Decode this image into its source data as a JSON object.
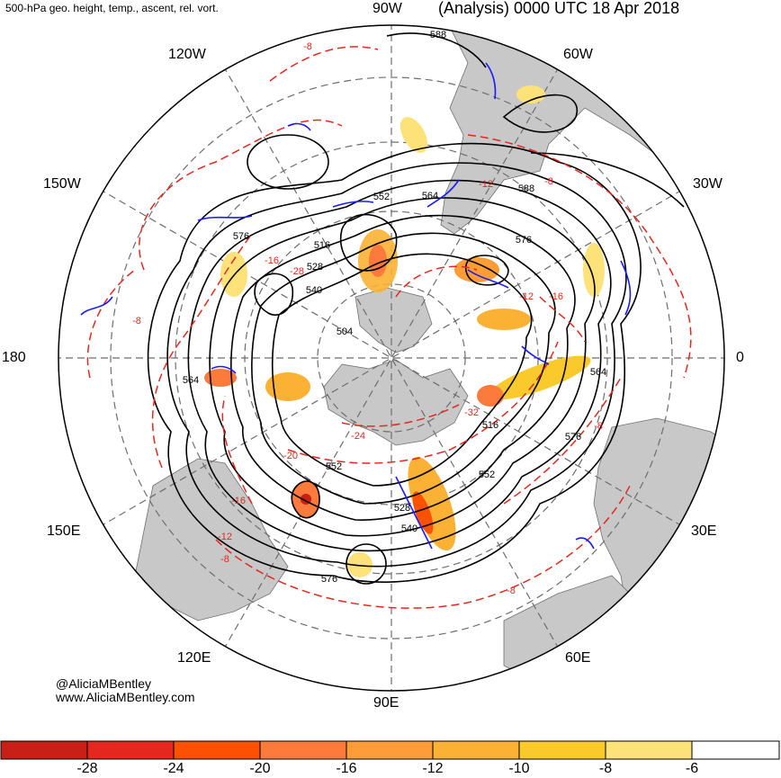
{
  "header": {
    "product": "500-hPa geo. height, temp., ascent, rel. vort.",
    "analysis": "(Analysis) 0000 UTC 18 Apr 2018"
  },
  "longitude_labels": {
    "w90": "90W",
    "w60": "60W",
    "w30": "30W",
    "lon0": "0",
    "e30": "30E",
    "e60": "60E",
    "e90": "90E",
    "e120": "120E",
    "e150": "150E",
    "lon180": "180",
    "w150": "150W",
    "w120": "120W"
  },
  "height_contour_labels": [
    "588",
    "588",
    "576",
    "576",
    "576",
    "576",
    "564",
    "564",
    "564",
    "552",
    "552",
    "552",
    "540",
    "528",
    "528",
    "516",
    "516",
    "504",
    "540"
  ],
  "temperature_contour_labels": [
    "-8",
    "-8",
    "-8",
    "-8",
    "-8",
    "-8",
    "-12",
    "-12",
    "-12",
    "-16",
    "-16",
    "-16",
    "-20",
    "-24",
    "-28",
    "-32"
  ],
  "credit": {
    "handle": "@AliciaMBentley",
    "website": "www.AliciaMBentley.com"
  },
  "colorbar": {
    "labels": [
      "-28",
      "-24",
      "-20",
      "-16",
      "-12",
      "-10",
      "-8",
      "-6"
    ],
    "colors": [
      "#c81f16",
      "#e4281f",
      "#fb5103",
      "#fb7a3c",
      "#fd9d37",
      "#fbb134",
      "#fac92b",
      "#fde27a",
      "#ffffff"
    ]
  },
  "colors": {
    "land": "#c8c8c8",
    "height_contour": "#000000",
    "temperature_contour": "#e4281f",
    "vorticity_contour": "#1a1aff",
    "grid": "#6e6e6e"
  }
}
